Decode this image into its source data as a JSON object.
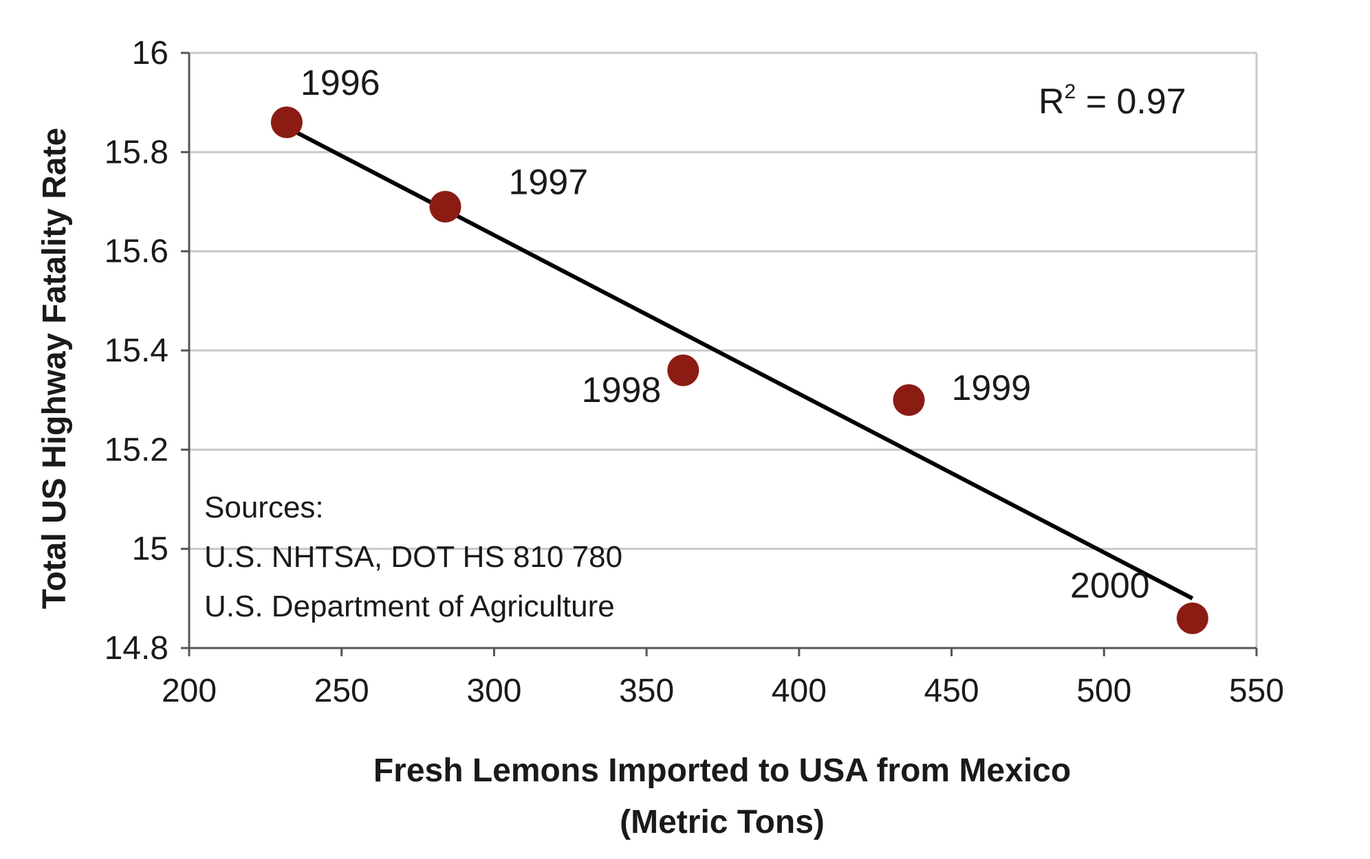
{
  "chart_data": {
    "type": "scatter",
    "title": "",
    "xlabel": "Fresh Lemons Imported to USA from Mexico",
    "xlabel_line2": "(Metric Tons)",
    "ylabel": "Total US Highway Fatality Rate",
    "xlim": [
      200,
      550
    ],
    "ylim": [
      14.8,
      16
    ],
    "x_ticks": [
      200,
      250,
      300,
      350,
      400,
      450,
      500,
      550
    ],
    "x_tick_labels": [
      "200",
      "250",
      "300",
      "350",
      "400",
      "450",
      "500",
      "550"
    ],
    "y_ticks": [
      14.8,
      15,
      15.2,
      15.4,
      15.6,
      15.8,
      16
    ],
    "y_tick_labels": [
      "14.8",
      "15",
      "15.2",
      "15.4",
      "15.6",
      "15.8",
      "16"
    ],
    "grid": "horizontal",
    "points": [
      {
        "label": "1996",
        "x": 232,
        "y": 15.86
      },
      {
        "label": "1997",
        "x": 284,
        "y": 15.69
      },
      {
        "label": "1998",
        "x": 362,
        "y": 15.36
      },
      {
        "label": "1999",
        "x": 436,
        "y": 15.3
      },
      {
        "label": "2000",
        "x": 529,
        "y": 14.86
      }
    ],
    "trendline": {
      "x": [
        232,
        529
      ],
      "y": [
        15.85,
        14.9
      ]
    },
    "annotation": {
      "r2_prefix": "R",
      "r2_sup": "2",
      "r2_rest": " = 0.97"
    },
    "sources": [
      "Sources:",
      "U.S. NHTSA, DOT HS 810 780",
      "U.S. Department of Agriculture"
    ],
    "colors": {
      "point": "#8b1c14",
      "trendline": "#000000",
      "grid": "#c8c8c8",
      "axis": "#555555"
    }
  }
}
